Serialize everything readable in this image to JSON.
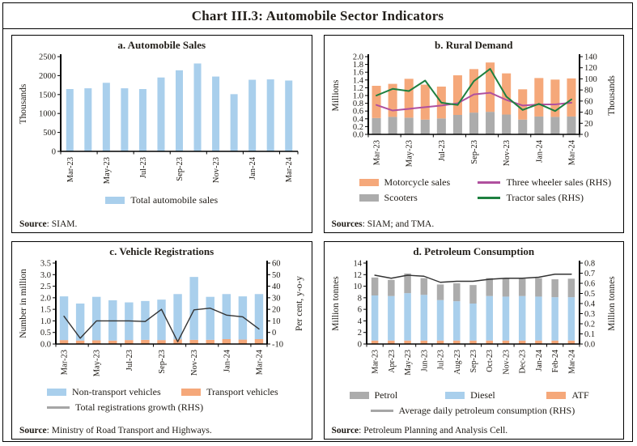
{
  "title": "Chart III.3: Automobile Sector Indicators",
  "colors": {
    "blue": "#A9CFEC",
    "orange": "#F5A87A",
    "gray": "#ACACAC",
    "green": "#1E8040",
    "magenta": "#B0509E",
    "dark_line": "#333333",
    "gray_line": "#A6A6A6",
    "axis": "#000000"
  },
  "categories": [
    "Mar-23",
    "Apr-23",
    "May-23",
    "Jun-23",
    "Jul-23",
    "Aug-23",
    "Sep-23",
    "Oct-23",
    "Nov-23",
    "Dec-23",
    "Jan-24",
    "Feb-24",
    "Mar-24"
  ],
  "chart_data": [
    {
      "panel": "a",
      "type": "bar",
      "title": "a. Automobile Sales",
      "ylabel_left": "Thousands",
      "axis_left": {
        "min": 0,
        "max": 2500,
        "step": 500,
        "dec": 0
      },
      "x_label_every": 2,
      "bar_frac": 0.4,
      "margins": {
        "l": 54,
        "r": 10,
        "t": 6,
        "b": 52
      },
      "categories": [
        "Mar-23",
        "Apr-23",
        "May-23",
        "Jun-23",
        "Jul-23",
        "Aug-23",
        "Sep-23",
        "Oct-23",
        "Nov-23",
        "Dec-23",
        "Jan-24",
        "Feb-24",
        "Mar-24"
      ],
      "series": [
        {
          "name": "Total automobile sales",
          "role": "bar",
          "color": "blue",
          "values": [
            1645,
            1665,
            1810,
            1665,
            1645,
            1950,
            2140,
            2320,
            1975,
            1510,
            1890,
            1900,
            1870
          ]
        }
      ],
      "source_prefix": "Source",
      "source_text": ": SIAM."
    },
    {
      "panel": "b",
      "type": "bar-line",
      "title": "b. Rural Demand",
      "ylabel_left": "Millions",
      "ylabel_right": "Thousands",
      "axis_left": {
        "min": 0,
        "max": 2.0,
        "step": 0.2,
        "dec": 1
      },
      "axis_right": {
        "min": 0,
        "max": 140,
        "step": 20,
        "dec": 0
      },
      "x_label_every": 2,
      "bar_frac": 0.55,
      "margins": {
        "l": 48,
        "r": 48,
        "t": 6,
        "b": 50
      },
      "categories": [
        "Mar-23",
        "Apr-23",
        "May-23",
        "Jun-23",
        "Jul-23",
        "Aug-23",
        "Sep-23",
        "Oct-23",
        "Nov-23",
        "Dec-23",
        "Jan-24",
        "Feb-24",
        "Mar-24"
      ],
      "series": [
        {
          "name": "Scooters",
          "role": "bar",
          "color": "gray",
          "values": [
            0.42,
            0.45,
            0.43,
            0.38,
            0.41,
            0.5,
            0.56,
            0.58,
            0.51,
            0.38,
            0.46,
            0.45,
            0.46
          ]
        },
        {
          "name": "Motorcycle sales",
          "role": "bar",
          "color": "orange",
          "values": [
            0.83,
            0.85,
            1.0,
            0.9,
            0.82,
            1.02,
            1.12,
            1.27,
            1.06,
            0.78,
            0.99,
            0.96,
            0.98
          ]
        },
        {
          "name": "Three wheeler sales (RHS)",
          "role": "line",
          "axis": "right",
          "color": "magenta",
          "width": 2,
          "values": [
            53,
            43,
            46,
            49,
            52,
            56,
            72,
            75,
            62,
            52,
            54,
            54,
            57
          ]
        },
        {
          "name": "Tractor sales (RHS)",
          "role": "line",
          "axis": "right",
          "color": "green",
          "width": 2,
          "values": [
            70,
            82,
            78,
            97,
            57,
            53,
            96,
            118,
            68,
            44,
            55,
            42,
            63
          ]
        }
      ],
      "source_prefix": "Sources",
      "source_text": ": SIAM; and TMA."
    },
    {
      "panel": "c",
      "type": "bar-line",
      "title": "c. Vehicle Registrations",
      "ylabel_left": "Number in million",
      "ylabel_right": "Per cent, y-o-y",
      "axis_left": {
        "min": 0,
        "max": 3.5,
        "step": 0.5,
        "dec": 1
      },
      "axis_right": {
        "min": -10,
        "max": 60,
        "step": 10,
        "dec": 0
      },
      "x_label_every": 2,
      "bar_frac": 0.52,
      "margins": {
        "l": 48,
        "r": 48,
        "t": 6,
        "b": 50
      },
      "categories": [
        "Mar-23",
        "Apr-23",
        "May-23",
        "Jun-23",
        "Jul-23",
        "Aug-23",
        "Sep-23",
        "Oct-23",
        "Nov-23",
        "Dec-23",
        "Jan-24",
        "Feb-24",
        "Mar-24"
      ],
      "series": [
        {
          "name": "Transport vehicles",
          "role": "bar",
          "color": "orange",
          "values": [
            0.17,
            0.15,
            0.16,
            0.15,
            0.17,
            0.18,
            0.17,
            0.2,
            0.18,
            0.18,
            0.21,
            0.19,
            0.21
          ]
        },
        {
          "name": "Non-transport vehicles",
          "role": "bar",
          "color": "blue",
          "values": [
            1.89,
            1.6,
            1.88,
            1.74,
            1.63,
            1.68,
            1.75,
            1.96,
            2.72,
            1.86,
            1.95,
            1.87,
            1.95
          ]
        },
        {
          "name": "Total registrations growth (RHS)",
          "role": "line",
          "axis": "right",
          "color": "dark_line",
          "legend_color": "gray_line",
          "width": 1.4,
          "values": [
            14,
            -5,
            10,
            10,
            10,
            9.5,
            20,
            -8,
            19.5,
            21,
            15,
            13.5,
            3
          ]
        }
      ],
      "source_prefix": "Source",
      "source_text": ": Ministry of Road Transport and Highways."
    },
    {
      "panel": "d",
      "type": "bar-line",
      "title": "d. Petroleum Consumption",
      "ylabel_left": "Million tonnes",
      "ylabel_right": "Million tonnes",
      "axis_left": {
        "min": 0,
        "max": 14,
        "step": 2,
        "dec": 0
      },
      "axis_right": {
        "min": 0,
        "max": 0.8,
        "step": 0.1,
        "dec": 1
      },
      "x_label_every": 1,
      "bar_frac": 0.42,
      "margins": {
        "l": 46,
        "r": 48,
        "t": 6,
        "b": 54
      },
      "categories": [
        "Mar-23",
        "Apr-23",
        "May-23",
        "Jun-23",
        "Jul-23",
        "Aug-23",
        "Sep-23",
        "Oct-23",
        "Nov-23",
        "Dec-23",
        "Jan-24",
        "Feb-24",
        "Mar-24"
      ],
      "series": [
        {
          "name": "ATF",
          "role": "bar",
          "color": "orange",
          "values": [
            0.6,
            0.6,
            0.6,
            0.6,
            0.6,
            0.6,
            0.6,
            0.6,
            0.6,
            0.6,
            0.6,
            0.6,
            0.6
          ]
        },
        {
          "name": "Diesel",
          "role": "bar",
          "color": "blue",
          "values": [
            7.8,
            7.7,
            8.2,
            7.9,
            7.0,
            6.8,
            6.4,
            7.7,
            7.6,
            7.7,
            7.6,
            7.5,
            7.5
          ]
        },
        {
          "name": "Petrol",
          "role": "bar",
          "color": "gray",
          "values": [
            3.1,
            2.8,
            3.4,
            2.9,
            2.7,
            3.1,
            3.2,
            3.1,
            3.1,
            3.0,
            3.2,
            3.1,
            3.2
          ]
        },
        {
          "name": "Average daily petroleum consumption (RHS)",
          "role": "line",
          "axis": "right",
          "color": "dark_line",
          "legend_color": "gray_line",
          "width": 1.4,
          "values": [
            0.68,
            0.65,
            0.68,
            0.67,
            0.61,
            0.62,
            0.62,
            0.64,
            0.65,
            0.65,
            0.66,
            0.69,
            0.69
          ]
        }
      ],
      "source_prefix": "Source",
      "source_text": ": Petroleum Planning and Analysis Cell."
    }
  ]
}
